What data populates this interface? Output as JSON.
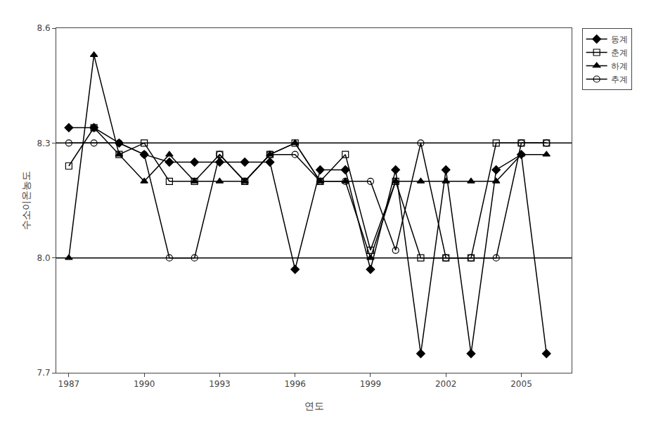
{
  "chart_data": {
    "type": "line",
    "x": [
      1987,
      1988,
      1989,
      1990,
      1991,
      1992,
      1993,
      1994,
      1995,
      1996,
      1997,
      1998,
      1999,
      2000,
      2001,
      2002,
      2003,
      2004,
      2005,
      2006
    ],
    "series": [
      {
        "name": "동계",
        "color": "#000000",
        "marker": "diamond",
        "line_style": "solid",
        "values": [
          8.34,
          8.34,
          8.3,
          8.27,
          8.25,
          8.25,
          8.25,
          8.25,
          8.25,
          7.97,
          8.23,
          8.23,
          7.97,
          8.23,
          7.75,
          8.23,
          7.75,
          8.23,
          8.27,
          7.75
        ]
      },
      {
        "name": "춘계",
        "color": "#000000",
        "marker": "square-open",
        "line_style": "solid",
        "values": [
          8.24,
          8.34,
          8.27,
          8.3,
          8.2,
          8.2,
          8.27,
          8.2,
          8.27,
          8.3,
          8.2,
          8.27,
          8.02,
          8.2,
          8.0,
          8.0,
          8.0,
          8.3,
          8.3,
          8.3
        ]
      },
      {
        "name": "하계",
        "color": "#000000",
        "marker": "triangle-up",
        "line_style": "solid",
        "values": [
          8.0,
          8.53,
          8.27,
          8.2,
          8.27,
          8.2,
          8.2,
          8.2,
          8.27,
          8.3,
          8.2,
          8.2,
          8.0,
          8.2,
          8.2,
          8.2,
          8.2,
          8.2,
          8.27,
          8.27
        ]
      },
      {
        "name": "추계",
        "color": "#000000",
        "marker": "circle-open",
        "line_style": "solid",
        "values": [
          8.3,
          8.3,
          8.3,
          8.27,
          8.0,
          8.0,
          8.27,
          8.2,
          8.27,
          8.27,
          8.2,
          8.2,
          8.2,
          8.02,
          8.3,
          8.0,
          8.0,
          8.0,
          8.3,
          8.3
        ]
      }
    ],
    "hlines": [
      8.0,
      8.3
    ],
    "x_label": "연도",
    "y_label": "수소이온농도",
    "xlim": [
      1986.5,
      2007
    ],
    "xticks": [
      1987,
      1990,
      1993,
      1996,
      1999,
      2002,
      2005
    ],
    "ylim": [
      7.7,
      8.6
    ],
    "yticks": [
      7.7,
      {
        "value": 8.0,
        "label": "8.0"
      },
      8.3,
      8.6
    ],
    "grid": false,
    "legend": "right"
  }
}
